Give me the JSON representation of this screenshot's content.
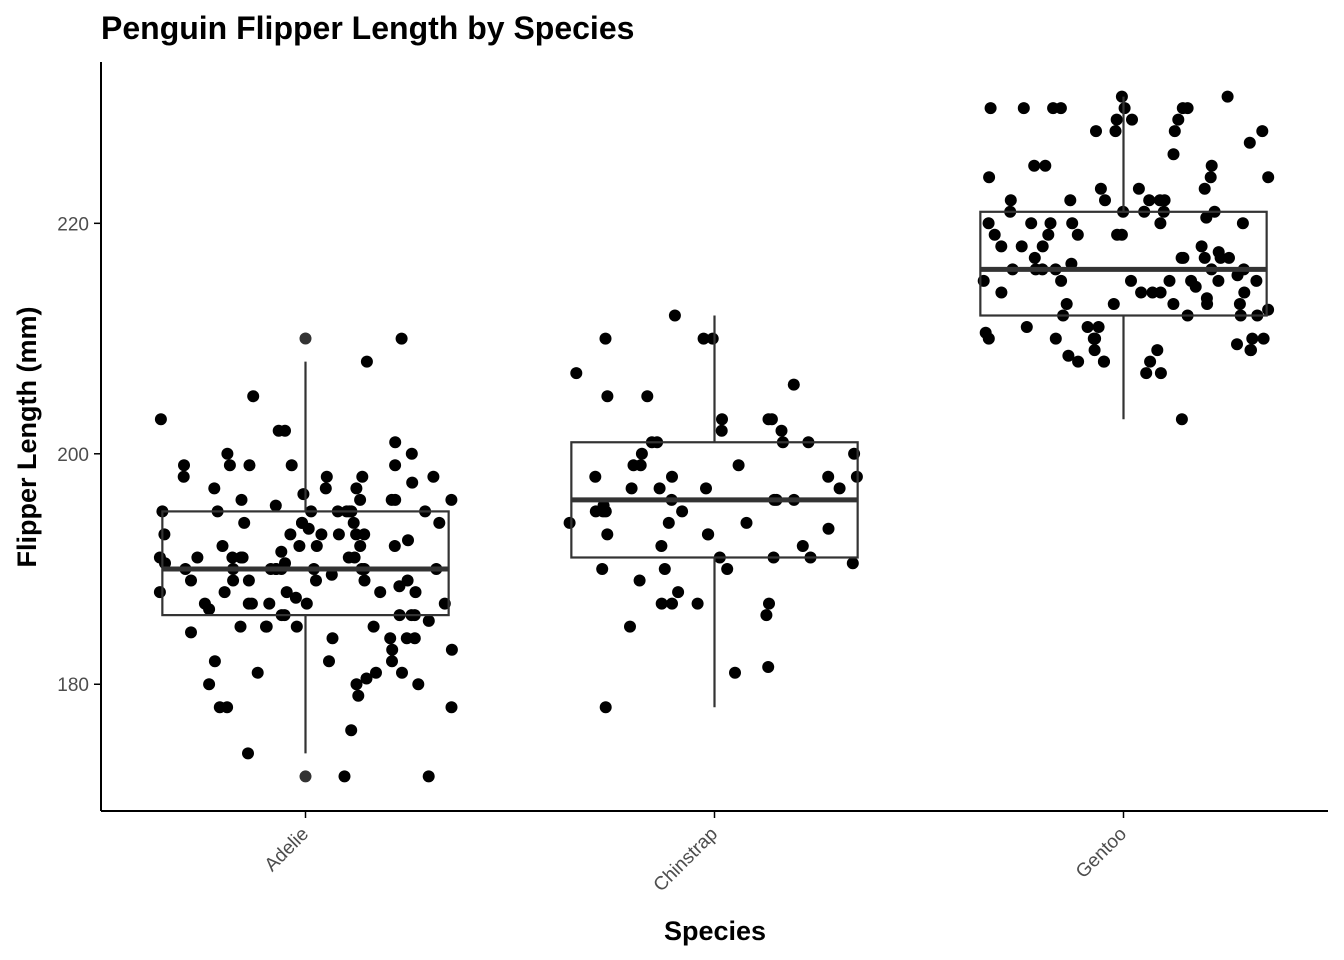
{
  "chart_data": {
    "type": "boxplot",
    "title": "Penguin Flipper Length by Species",
    "xlabel": "Species",
    "ylabel": "Flipper Length (mm)",
    "categories": [
      "Adelie",
      "Chinstrap",
      "Gentoo"
    ],
    "y_ticks": [
      180,
      200,
      220
    ],
    "ylim": [
      169,
      234
    ],
    "grid": false,
    "legend": "none",
    "colors": {
      "points": "#000000",
      "box": "#333333",
      "axis": "#000000",
      "tick_text": "#4d4d4d"
    },
    "boxes": [
      {
        "category": "Adelie",
        "min": 174,
        "q1": 186,
        "median": 190,
        "q3": 195,
        "max": 208,
        "outliers": [
          210,
          172
        ]
      },
      {
        "category": "Chinstrap",
        "min": 178,
        "q1": 191,
        "median": 196,
        "q3": 201,
        "max": 212,
        "outliers": []
      },
      {
        "category": "Gentoo",
        "min": 203,
        "q1": 212,
        "median": 216,
        "q3": 221,
        "max": 231,
        "outliers": []
      }
    ],
    "points": {
      "Adelie": [
        176,
        174,
        172,
        178,
        179,
        180,
        180,
        180,
        180.5,
        181,
        181,
        181,
        182,
        182,
        182,
        178,
        178,
        184,
        184,
        184,
        184.5,
        185,
        185,
        185,
        185,
        185,
        185.5,
        186,
        186,
        186,
        186,
        186.5,
        187,
        187,
        187,
        187,
        187,
        187.5,
        188,
        188,
        188,
        188,
        188.5,
        189,
        189,
        189,
        189,
        189,
        189.5,
        190,
        190,
        190,
        190,
        190,
        190,
        190,
        190,
        190,
        190.5,
        190.5,
        191,
        191,
        191,
        191,
        191,
        191,
        191.5,
        192,
        192,
        192,
        192,
        192.5,
        193,
        193,
        193,
        193,
        193,
        193.5,
        194,
        194,
        194,
        194,
        195,
        195,
        195,
        195,
        195,
        195,
        195,
        195.5,
        196,
        196,
        196,
        196,
        196,
        196.5,
        197,
        197,
        197,
        197.5,
        198,
        198,
        198,
        198,
        199,
        199,
        199,
        199,
        199,
        200,
        200,
        201,
        202,
        202,
        203,
        205,
        208,
        210,
        183,
        183,
        184,
        186,
        187,
        188,
        189,
        190,
        191,
        192,
        193,
        194,
        195,
        172
      ],
      "Chinstrap": [
        181.5,
        178,
        181,
        185,
        186,
        187,
        187,
        187,
        187,
        188,
        189,
        190,
        190,
        190,
        190.5,
        191,
        191,
        191,
        192,
        192,
        193,
        193,
        193,
        193.5,
        194,
        194,
        194,
        195,
        195,
        195,
        195,
        195.5,
        196,
        196,
        196,
        196,
        197,
        197,
        197,
        197,
        198,
        198,
        198,
        198,
        199,
        199,
        199,
        200,
        200,
        201,
        201,
        201,
        201,
        202,
        202,
        203,
        203,
        203,
        205,
        205,
        206,
        207,
        210,
        210,
        210,
        212
      ],
      "Gentoo": [
        203,
        207,
        207,
        208,
        208,
        208,
        208,
        208.5,
        209,
        209,
        209,
        209,
        209.5,
        210,
        210,
        210,
        210,
        210,
        210,
        210.5,
        211,
        211,
        211,
        212,
        212,
        212,
        212,
        212.5,
        213,
        213,
        213,
        213,
        213,
        213.5,
        214,
        214,
        214,
        214,
        214,
        214.5,
        215,
        215,
        215,
        215,
        215,
        215,
        215,
        215.5,
        216,
        216,
        216,
        216,
        216,
        216,
        216.5,
        217,
        217,
        217,
        217,
        217,
        217,
        217.5,
        218,
        218,
        218,
        218,
        219,
        219,
        219,
        219,
        219,
        220,
        220,
        220,
        220,
        220,
        220,
        220.5,
        221,
        221,
        221,
        221,
        221,
        222,
        222,
        222,
        222,
        222,
        222,
        223,
        223,
        223,
        224,
        224,
        224,
        225,
        225,
        225,
        226,
        227,
        228,
        228,
        228,
        228,
        229,
        229,
        229,
        230,
        230,
        230,
        230,
        230,
        230,
        230,
        231,
        231
      ]
    }
  }
}
